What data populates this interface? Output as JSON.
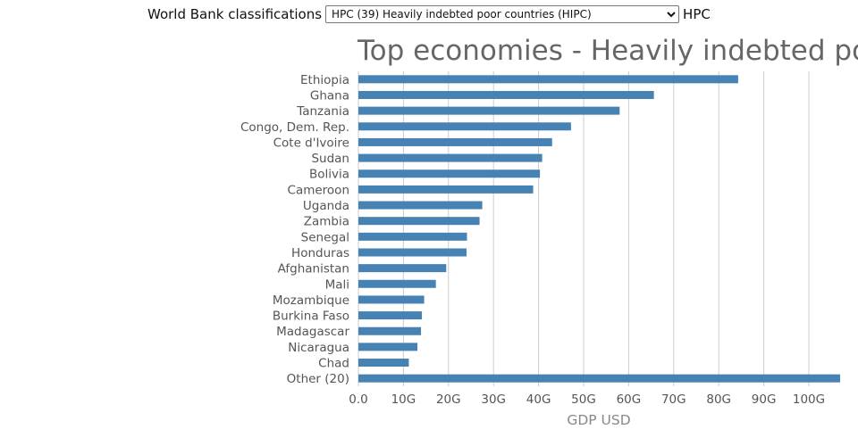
{
  "header": {
    "label": "World Bank classifications",
    "select_value": "HPC (39) Heavily indebted poor countries (HIPC)",
    "code": "HPC"
  },
  "colors": {
    "bar": "#4682b4",
    "grid": "#cccccc",
    "axis_text": "#555555",
    "title": "#666666"
  },
  "chart_data": {
    "type": "bar",
    "orientation": "horizontal",
    "title": "Top economies - Heavily indebted poor countries (HIPC)",
    "xlabel": "GDP USD",
    "ylabel": "",
    "xlim": [
      0,
      107
    ],
    "xticks": [
      0,
      10,
      20,
      30,
      40,
      50,
      60,
      70,
      80,
      90,
      100
    ],
    "xtick_labels": [
      "0.0",
      "10G",
      "20G",
      "30G",
      "40G",
      "50G",
      "60G",
      "70G",
      "80G",
      "90G",
      "100G"
    ],
    "grid": true,
    "categories": [
      "Ethiopia",
      "Ghana",
      "Tanzania",
      "Congo, Dem. Rep.",
      "Cote d'Ivoire",
      "Sudan",
      "Bolivia",
      "Cameroon",
      "Uganda",
      "Zambia",
      "Senegal",
      "Honduras",
      "Afghanistan",
      "Mali",
      "Mozambique",
      "Burkina Faso",
      "Madagascar",
      "Nicaragua",
      "Chad",
      "Other (20)"
    ],
    "values": [
      84.3,
      65.6,
      58.0,
      47.2,
      43.0,
      40.8,
      40.3,
      38.8,
      27.5,
      26.9,
      24.1,
      24.0,
      19.5,
      17.2,
      14.6,
      14.1,
      13.9,
      13.1,
      11.2,
      107.2
    ]
  }
}
